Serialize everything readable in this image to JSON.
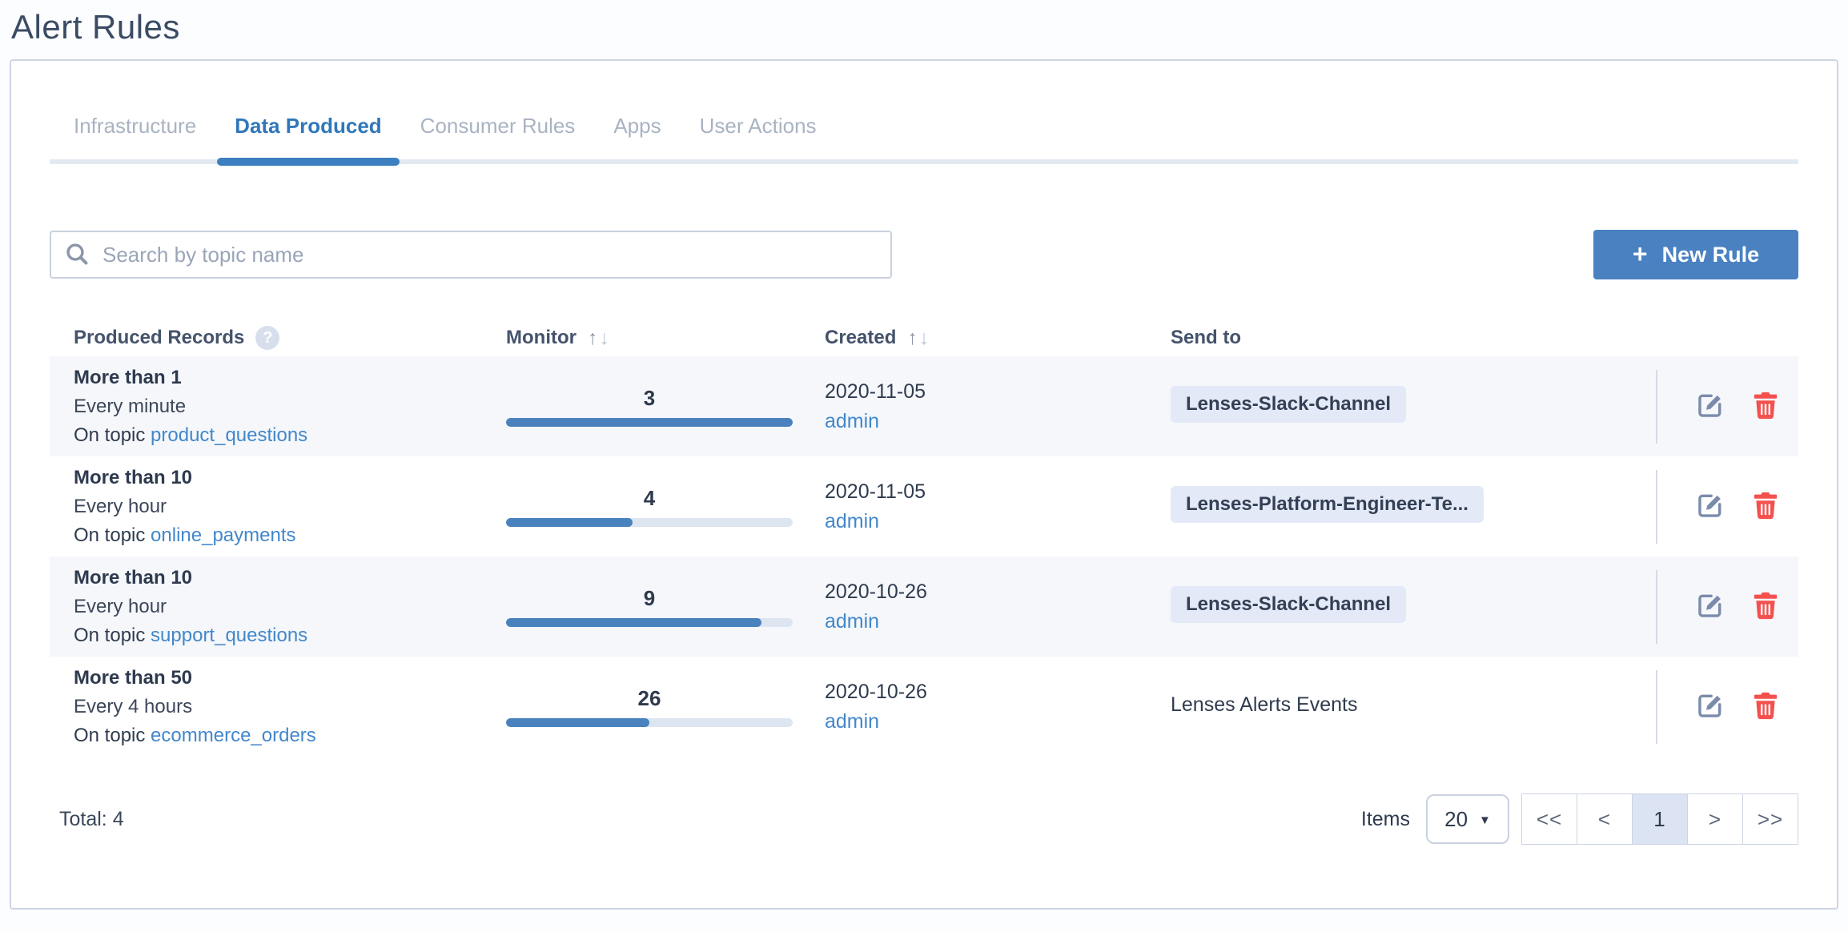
{
  "page_title": "Alert Rules",
  "tabs": [
    {
      "label": "Infrastructure",
      "active": false
    },
    {
      "label": "Data Produced",
      "active": true
    },
    {
      "label": "Consumer Rules",
      "active": false
    },
    {
      "label": "Apps",
      "active": false
    },
    {
      "label": "User Actions",
      "active": false
    }
  ],
  "toolbar": {
    "search_placeholder": "Search by topic name",
    "new_rule_label": "New Rule"
  },
  "icons": {
    "plus": "+",
    "help": "?",
    "sort_up": "↑",
    "sort_down": "↓",
    "caret": "▼"
  },
  "table": {
    "headers": {
      "produced": "Produced Records",
      "monitor": "Monitor",
      "created": "Created",
      "send_to": "Send to"
    },
    "rows": [
      {
        "condition": "More than 1",
        "frequency": "Every minute",
        "topic_prefix": "On topic ",
        "topic": "product_questions",
        "monitor_value": "3",
        "monitor_pct": 100,
        "created_date": "2020-11-05",
        "created_by": "admin",
        "send_to": "Lenses-Slack-Channel",
        "send_to_chip": true
      },
      {
        "condition": "More than 10",
        "frequency": "Every hour",
        "topic_prefix": "On topic ",
        "topic": "online_payments",
        "monitor_value": "4",
        "monitor_pct": 44,
        "created_date": "2020-11-05",
        "created_by": "admin",
        "send_to": "Lenses-Platform-Engineer-Te...",
        "send_to_chip": true
      },
      {
        "condition": "More than 10",
        "frequency": "Every hour",
        "topic_prefix": "On topic ",
        "topic": "support_questions",
        "monitor_value": "9",
        "monitor_pct": 89,
        "created_date": "2020-10-26",
        "created_by": "admin",
        "send_to": "Lenses-Slack-Channel",
        "send_to_chip": true
      },
      {
        "condition": "More than 50",
        "frequency": "Every 4 hours",
        "topic_prefix": "On topic ",
        "topic": "ecommerce_orders",
        "monitor_value": "26",
        "monitor_pct": 50,
        "created_date": "2020-10-26",
        "created_by": "admin",
        "send_to": "Lenses Alerts Events",
        "send_to_chip": false
      }
    ]
  },
  "pagination": {
    "total": "Total: 4",
    "items_label": "Items",
    "page_size": "20",
    "buttons": [
      "<<",
      "<",
      "1",
      ">",
      ">>"
    ],
    "active_index": 2
  },
  "colors": {
    "accent_blue": "#4a81c1",
    "active_tab_blue": "#3077ba",
    "link_blue": "#4287ca",
    "bar_fill": "#4a82be",
    "bar_track": "#dde5f1",
    "danger_red": "#f4504e",
    "chip_bg": "#e4e9f7",
    "row_alt_bg": "#f5f7fa"
  }
}
